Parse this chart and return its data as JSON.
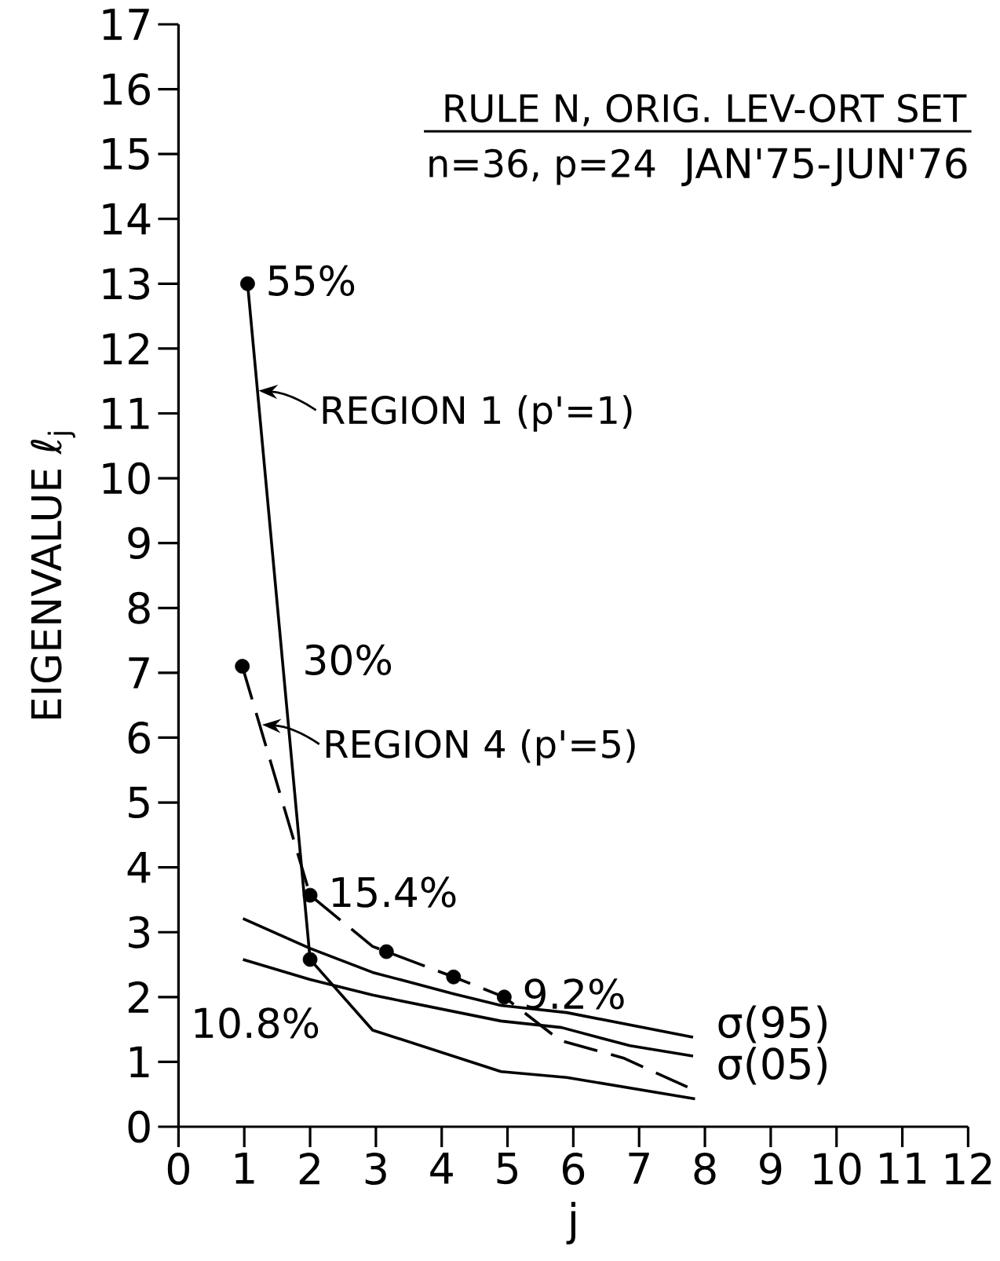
{
  "chart_data": {
    "type": "line",
    "title": "RULE N, ORIG. LEV-ORT SET",
    "subtitle": "n=36, p=24",
    "xlabel": "j",
    "ylabel": "EIGENVALUE ℓ$_{j}$",
    "xlim": [
      0,
      12
    ],
    "ylim": [
      0,
      17
    ],
    "xticks": [
      0,
      1,
      2,
      3,
      4,
      5,
      6,
      7,
      8,
      9,
      10,
      11,
      12
    ],
    "yticks": [
      0,
      1,
      2,
      3,
      4,
      5,
      6,
      7,
      8,
      9,
      10,
      11,
      12,
      13,
      14,
      15,
      16,
      17
    ],
    "grid": false,
    "legend": false,
    "marker": "none",
    "series": [
      {
        "color": "#000000",
        "line_style": "solid",
        "x": [
          1.05,
          2.0,
          2.95,
          4.9,
          5.9,
          7.85
        ],
        "values": [
          13.0,
          2.58,
          1.49,
          0.85,
          0.76,
          0.43
        ]
      },
      {
        "color": "#000000",
        "line_style": "dashed",
        "x": [
          0.97,
          2.0,
          2.95,
          3.16,
          4.18,
          4.95,
          5.8,
          6.76,
          7.87
        ],
        "values": [
          7.1,
          3.57,
          2.78,
          2.7,
          2.31,
          2.0,
          1.33,
          1.06,
          0.55
        ]
      },
      {
        "name": "σ(95)",
        "color": "#000000",
        "line_style": "solid",
        "x": [
          0.98,
          2.0,
          2.95,
          4.18,
          4.9,
          5.9,
          7.82
        ],
        "values": [
          3.21,
          2.75,
          2.38,
          2.05,
          1.87,
          1.76,
          1.38
        ]
      },
      {
        "name": "σ(05)",
        "color": "#000000",
        "line_style": "solid",
        "x": [
          0.98,
          2.0,
          2.95,
          4.9,
          5.82,
          6.86,
          7.82
        ],
        "values": [
          2.58,
          2.27,
          2.03,
          1.63,
          1.53,
          1.25,
          1.09
        ]
      },
      {
        "type": "scatter",
        "marker": "circle",
        "color": "#000000",
        "x": [
          1.05,
          2.0,
          0.97,
          2.0,
          3.16,
          4.18,
          4.95
        ],
        "values": [
          13.0,
          2.58,
          7.1,
          3.57,
          2.7,
          2.31,
          2.0
        ]
      }
    ],
    "annotations": [
      "JAN'75-JUN'76",
      {
        "text": "55%",
        "x": 1.05,
        "y": 13.0
      },
      {
        "text": "15.4%",
        "x": 2.0,
        "y": 3.57
      },
      {
        "text": "9.2%",
        "x": 4.95,
        "y": 2.0
      },
      {
        "text": "REGION 1 (p'=1)",
        "x": 1.22,
        "y": 11.35
      },
      {
        "text": "REGION 4 (p'=5)",
        "x": 1.27,
        "y": 6.2
      },
      "30%",
      "10.8%"
    ]
  }
}
